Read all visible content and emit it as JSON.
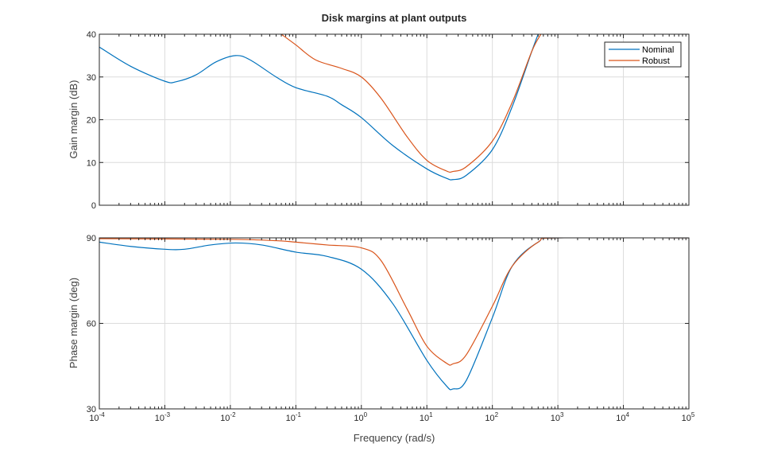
{
  "figure": {
    "title": "Disk margins at plant outputs",
    "xlabel": "Frequency (rad/s)",
    "legend": [
      "Nominal",
      "Robust"
    ],
    "colors": {
      "Nominal": "#0072BD",
      "Robust": "#D95319",
      "grid": "#dcdcdc",
      "axis": "#262626"
    }
  },
  "chart_data": [
    {
      "type": "line",
      "title": "Disk margins at plant outputs",
      "xlabel": "",
      "ylabel": "Gain margin (dB)",
      "xscale": "log",
      "xlim": [
        0.0001,
        100000
      ],
      "ylim": [
        0,
        40
      ],
      "xticks": [
        "10^-4",
        "10^-3",
        "10^-2",
        "10^-1",
        "10^0",
        "10^1",
        "10^2",
        "10^3",
        "10^4",
        "10^5"
      ],
      "yticks": [
        0,
        10,
        20,
        30,
        40
      ],
      "grid": true,
      "legend_position": "top-right",
      "series": [
        {
          "name": "Nominal",
          "x": [
            0.0001,
            0.0003,
            0.001,
            0.0015,
            0.003,
            0.006,
            0.012,
            0.02,
            0.05,
            0.1,
            0.3,
            0.5,
            1,
            3,
            10,
            20,
            25,
            40,
            100,
            200,
            400,
            500
          ],
          "y": [
            37,
            32.5,
            29,
            28.9,
            30.5,
            33.5,
            35,
            34,
            30,
            27.5,
            25.5,
            23.5,
            20.5,
            14,
            8.5,
            6.3,
            6.0,
            7,
            13,
            23,
            36,
            40
          ]
        },
        {
          "name": "Robust",
          "x": [
            0.06,
            0.1,
            0.2,
            0.5,
            1,
            2,
            5,
            10,
            20,
            25,
            40,
            100,
            200,
            400,
            550
          ],
          "y": [
            40,
            37.5,
            34,
            32,
            30,
            25,
            16,
            10.5,
            8,
            7.9,
            9,
            15,
            24,
            36,
            40
          ]
        }
      ]
    },
    {
      "type": "line",
      "xlabel": "Frequency (rad/s)",
      "ylabel": "Phase margin (deg)",
      "xscale": "log",
      "xlim": [
        0.0001,
        100000
      ],
      "ylim": [
        30,
        90
      ],
      "xticks": [
        "10^-4",
        "10^-3",
        "10^-2",
        "10^-1",
        "10^0",
        "10^1",
        "10^2",
        "10^3",
        "10^4",
        "10^5"
      ],
      "yticks": [
        30,
        60,
        90
      ],
      "grid": true,
      "series": [
        {
          "name": "Nominal",
          "x": [
            0.0001,
            0.0003,
            0.001,
            0.002,
            0.005,
            0.012,
            0.03,
            0.1,
            0.3,
            1,
            3,
            10,
            20,
            25,
            40,
            100,
            200,
            500,
            1000,
            100000
          ],
          "y": [
            88.5,
            87,
            86,
            86,
            87.5,
            88.2,
            87.5,
            85,
            83.5,
            79,
            67,
            47,
            38,
            37,
            40,
            62,
            80,
            88.5,
            90,
            90
          ]
        },
        {
          "name": "Robust",
          "x": [
            0.0001,
            0.01,
            0.05,
            0.1,
            0.3,
            1,
            2,
            5,
            10,
            20,
            25,
            40,
            100,
            200,
            500,
            1000,
            100000
          ],
          "y": [
            89.7,
            89.5,
            89,
            88.5,
            87.5,
            86.5,
            82,
            65,
            52,
            46,
            45.8,
            49,
            66,
            80,
            88.5,
            90,
            90
          ]
        }
      ]
    }
  ]
}
